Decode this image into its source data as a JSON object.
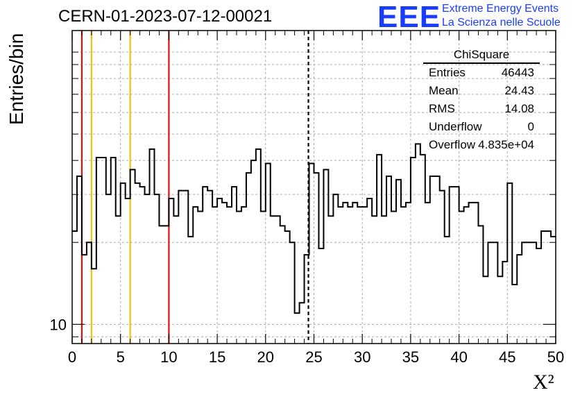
{
  "chart_data": {
    "type": "histogram",
    "title": "CERN-01-2023-07-12-00021",
    "xlabel": "X²",
    "ylabel": "Entries/bin",
    "xlim": [
      0,
      50
    ],
    "ylim": [
      8.5,
      120
    ],
    "yscale": "log",
    "grid": true,
    "xticks": [
      "0",
      "5",
      "10",
      "15",
      "20",
      "25",
      "30",
      "35",
      "40",
      "45",
      "50"
    ],
    "yticks": [
      "10"
    ],
    "bin_width": 0.5,
    "values": [
      22,
      35,
      18,
      20,
      16,
      41,
      41,
      30,
      41,
      25,
      33,
      29,
      37,
      33,
      32,
      30,
      44,
      30,
      23,
      23,
      29,
      25,
      31,
      31,
      21,
      27,
      26,
      32,
      31,
      27,
      29,
      28,
      27,
      32,
      26,
      27,
      36,
      40,
      44,
      26,
      39,
      25,
      25,
      23,
      22,
      20,
      11,
      12,
      18,
      39,
      36,
      19,
      37,
      25,
      30,
      27,
      28,
      27,
      28,
      27,
      27,
      29,
      25,
      42,
      25,
      35,
      26,
      34,
      27,
      28,
      41,
      46,
      42,
      28,
      35,
      35,
      31,
      21,
      32,
      32,
      26,
      27,
      28,
      28,
      23,
      15,
      20,
      20,
      15,
      17,
      33,
      14,
      18,
      20,
      20,
      20,
      19,
      22,
      22,
      21
    ],
    "vertical_lines": [
      {
        "x": 1,
        "color": "#e01010",
        "style": "solid"
      },
      {
        "x": 2,
        "color": "#f0c010",
        "style": "solid"
      },
      {
        "x": 6,
        "color": "#f0c010",
        "style": "solid"
      },
      {
        "x": 10,
        "color": "#e01010",
        "style": "solid"
      },
      {
        "x": 24.43,
        "color": "#000000",
        "style": "dashed"
      }
    ],
    "stats": {
      "title": "ChiSquare",
      "rows": [
        {
          "label": "Entries",
          "value": "46443"
        },
        {
          "label": "Mean",
          "value": "24.43"
        },
        {
          "label": "RMS",
          "value": "14.08"
        },
        {
          "label": "Underflow",
          "value": "0"
        },
        {
          "label": "Overflow",
          "value": "4.835e+04"
        }
      ]
    }
  },
  "logo": {
    "mark": "EEE",
    "line1": "Extreme Energy Events",
    "line2": "La Scienza nelle Scuole"
  }
}
